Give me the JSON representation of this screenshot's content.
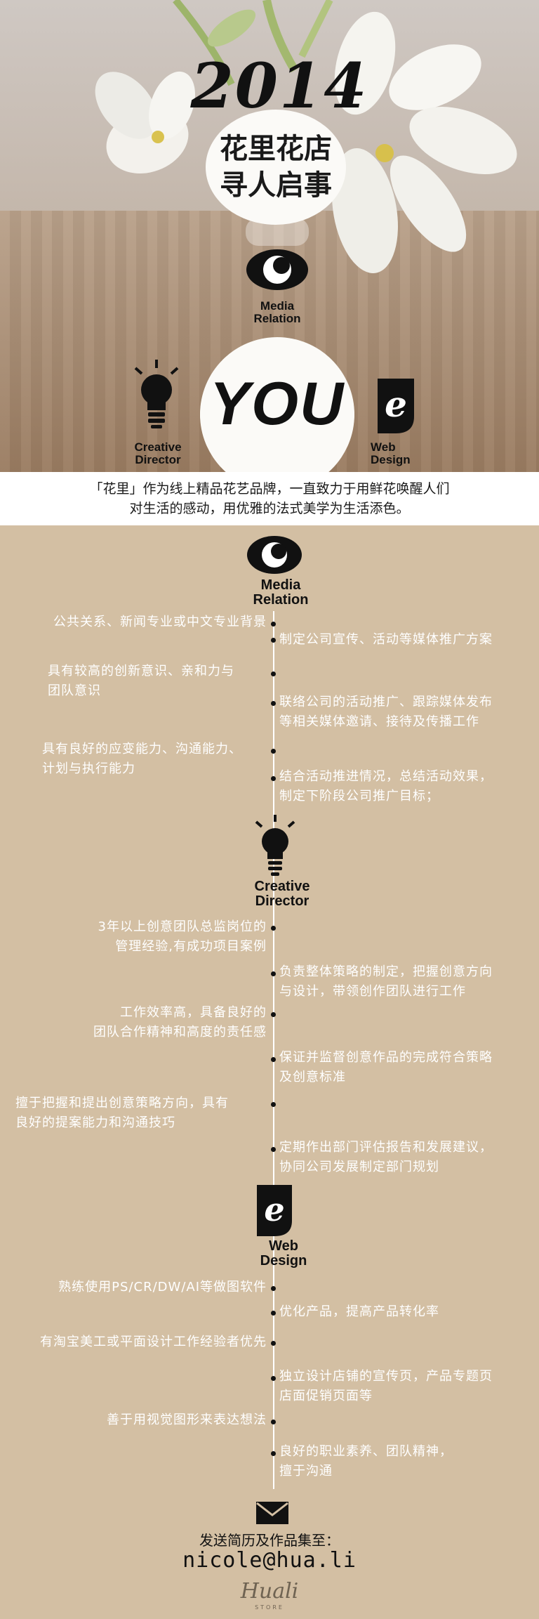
{
  "hero": {
    "year": "2014",
    "title_line1": "花里花店",
    "title_line2": "寻人启事",
    "you": "YOU",
    "media_label1": "Media",
    "media_label2": "Relation",
    "creative_label1": "Creative",
    "creative_label2": "Director",
    "web_label1": "Web",
    "web_label2": "Design"
  },
  "intro": {
    "line1": "「花里」作为线上精品花艺品牌，一直致力于用鲜花唤醒人们",
    "line2": "对生活的感动，用优雅的法式美学为生活添色。"
  },
  "sections": [
    {
      "label1": "Media",
      "label2": "Relation",
      "requirements": [
        "公共关系、新闻专业或中文专业背景",
        "具有较高的创新意识、亲和力与\n团队意识",
        "具有良好的应变能力、沟通能力、\n计划与执行能力"
      ],
      "duties": [
        "制定公司宣传、活动等媒体推广方案",
        "联络公司的活动推广、跟踪媒体发布\n等相关媒体邀请、接待及传播工作",
        "结合活动推进情况，总结活动效果，\n制定下阶段公司推广目标；"
      ]
    },
    {
      "label1": "Creative",
      "label2": "Director",
      "requirements": [
        "3年以上创意团队总监岗位的\n管理经验,有成功项目案例",
        "工作效率高，具备良好的\n团队合作精神和高度的责任感",
        "擅于把握和提出创意策略方向，具有\n良好的提案能力和沟通技巧"
      ],
      "duties": [
        "负责整体策略的制定，把握创意方向\n与设计，带领创作团队进行工作",
        "保证并监督创意作品的完成符合策略\n及创意标准",
        "定期作出部门评估报告和发展建议，\n协同公司发展制定部门规划"
      ]
    },
    {
      "label1": "Web",
      "label2": "Design",
      "requirements": [
        "熟练使用PS/CR/DW/AI等做图软件",
        "有淘宝美工或平面设计工作经验者优先",
        "善于用视觉图形来表达想法"
      ],
      "duties": [
        "优化产品，提高产品转化率",
        "独立设计店铺的宣传页，产品专题页\n店面促销页面等",
        "良好的职业素养、团队精神，\n擅于沟通"
      ]
    }
  ],
  "footer": {
    "send_text": "发送简历及作品集至：",
    "email": "nicole@hua.li",
    "logo": "Huali",
    "logo_sub": "STORE"
  },
  "icons": {
    "media": "eye-icon",
    "creative": "lightbulb-icon",
    "web": "letter-e-icon",
    "mail": "envelope-icon"
  }
}
